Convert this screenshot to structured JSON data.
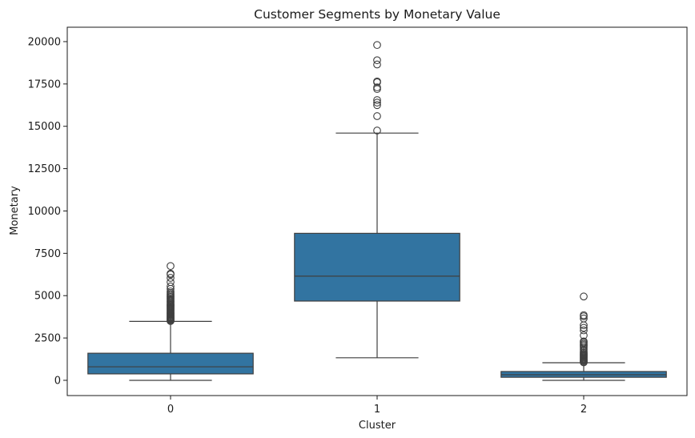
{
  "chart_data": {
    "type": "box",
    "title": "Customer Segments by Monetary Value",
    "xlabel": "Cluster",
    "ylabel": "Monetary",
    "categories": [
      "0",
      "1",
      "2"
    ],
    "ylim": [
      -900,
      20850
    ],
    "yticks": [
      0,
      2500,
      5000,
      7500,
      10000,
      12500,
      15000,
      17500,
      20000
    ],
    "ytick_labels": [
      "0",
      "2500",
      "5000",
      "7500",
      "10000",
      "12500",
      "15000",
      "17500",
      "20000"
    ],
    "grid": false,
    "legend": "none",
    "box_color": "#3274a1",
    "line_color": "#3f3f3f",
    "boxes": [
      {
        "category": "0",
        "whisker_low": 0,
        "q1": 380,
        "median": 800,
        "q3": 1600,
        "whisker_high": 3480,
        "outliers": [
          3500,
          3540,
          3580,
          3620,
          3660,
          3700,
          3740,
          3790,
          3840,
          3890,
          3940,
          3990,
          4040,
          4090,
          4140,
          4190,
          4240,
          4290,
          4340,
          4390,
          4440,
          4490,
          4540,
          4600,
          4660,
          4720,
          4790,
          4860,
          4930,
          5000,
          5080,
          5160,
          5250,
          5400,
          5550,
          5800,
          6050,
          6250,
          6300,
          6750
        ]
      },
      {
        "category": "1",
        "whisker_low": 1330,
        "q1": 4680,
        "median": 6150,
        "q3": 8680,
        "whisker_high": 14600,
        "outliers": [
          14750,
          15600,
          16250,
          16400,
          16550,
          17200,
          17300,
          17600,
          17650,
          18650,
          18900,
          19800
        ]
      },
      {
        "category": "2",
        "whisker_low": 0,
        "q1": 180,
        "median": 330,
        "q3": 520,
        "whisker_high": 1040,
        "outliers": [
          1060,
          1100,
          1150,
          1200,
          1250,
          1300,
          1350,
          1400,
          1450,
          1500,
          1550,
          1620,
          1700,
          1800,
          1900,
          2000,
          2080,
          2150,
          2230,
          2300,
          2650,
          2950,
          3100,
          3250,
          3650,
          3780,
          3850,
          4950
        ]
      }
    ]
  }
}
